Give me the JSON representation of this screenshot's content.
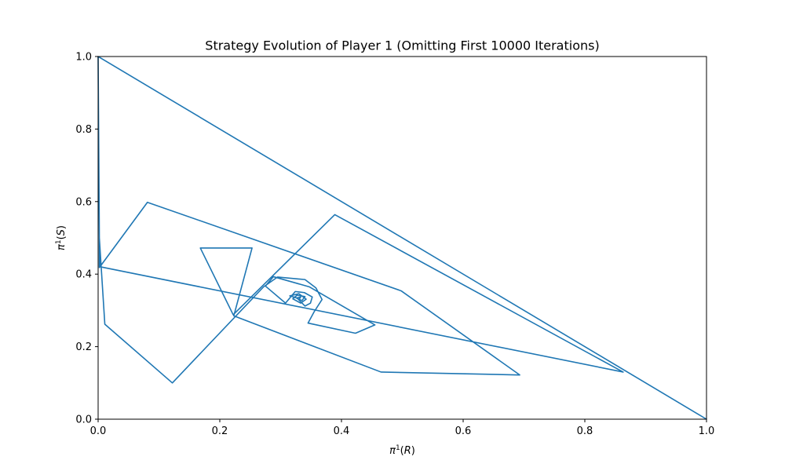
{
  "chart_data": {
    "type": "line",
    "title": "Strategy Evolution of Player 1 (Omitting First 10000 Iterations)",
    "xlabel": {
      "pi": "π",
      "sup": "1",
      "open": "(",
      "var": "R",
      "close": ")"
    },
    "ylabel": {
      "pi": "π",
      "sup": "1",
      "open": "(",
      "var": "S",
      "close": ")"
    },
    "xlim": [
      0,
      1
    ],
    "ylim": [
      0,
      1
    ],
    "xticks": [
      "0.0",
      "0.2",
      "0.4",
      "0.6",
      "0.8",
      "1.0"
    ],
    "yticks": [
      "0.0",
      "0.2",
      "0.4",
      "0.6",
      "0.8",
      "1.0"
    ],
    "grid": false,
    "legend": "none",
    "series": [
      {
        "color": "#1f77b4",
        "x": [
          0.001,
          0.88,
          0.0,
          1.0,
          0.0,
          0.002,
          0.002,
          0.081,
          0.498,
          0.693,
          0.465,
          0.223,
          0.253,
          0.168,
          0.222,
          0.389,
          0.863,
          0.004,
          0.002,
          0.011,
          0.122,
          0.272,
          0.295,
          0.34,
          0.358,
          0.368,
          0.355,
          0.345,
          0.423,
          0.455,
          0.347,
          0.288,
          0.275,
          0.308,
          0.324,
          0.339,
          0.352,
          0.349,
          0.34,
          0.327,
          0.315,
          0.33,
          0.342,
          0.333,
          0.32,
          0.327,
          0.34,
          0.335,
          0.326,
          0.333,
          0.331
        ],
        "y": [
          0.999,
          0.12,
          1.0,
          0.0,
          1.0,
          0.5,
          0.418,
          0.598,
          0.354,
          0.122,
          0.13,
          0.285,
          0.472,
          0.472,
          0.288,
          0.564,
          0.13,
          0.42,
          0.5,
          0.262,
          0.1,
          0.365,
          0.392,
          0.385,
          0.362,
          0.33,
          0.296,
          0.265,
          0.237,
          0.26,
          0.365,
          0.393,
          0.367,
          0.32,
          0.352,
          0.349,
          0.337,
          0.32,
          0.312,
          0.334,
          0.34,
          0.346,
          0.331,
          0.32,
          0.332,
          0.342,
          0.338,
          0.327,
          0.334,
          0.337,
          0.332
        ]
      }
    ]
  }
}
